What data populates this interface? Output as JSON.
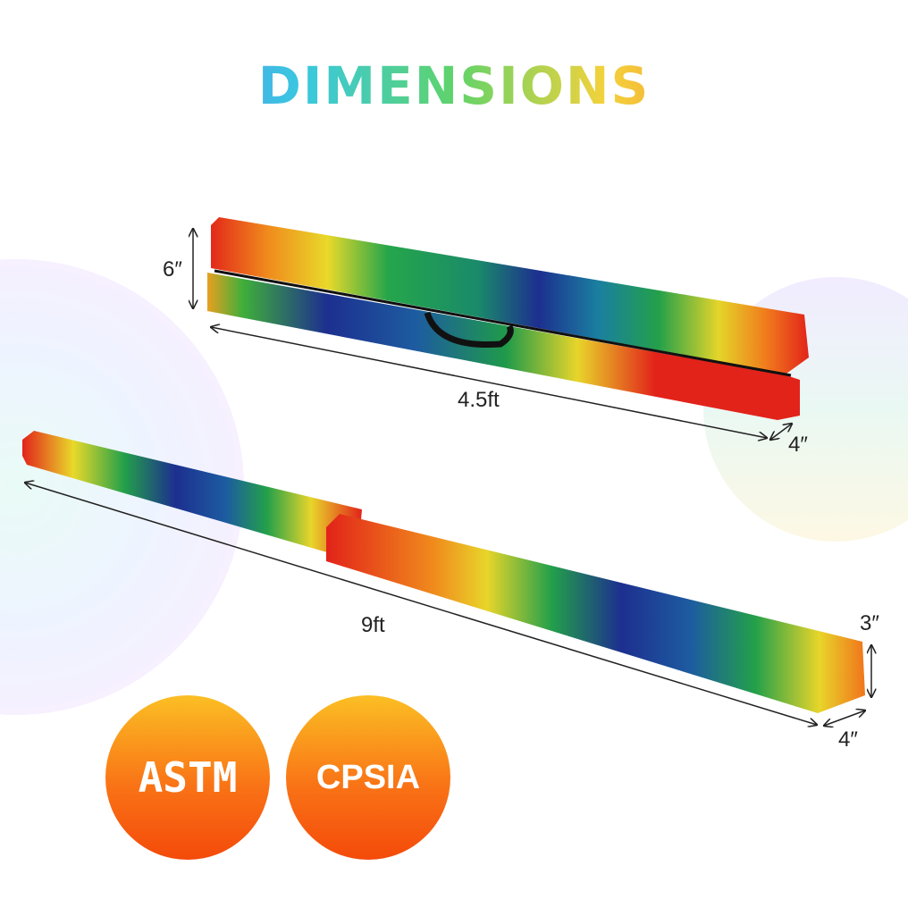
{
  "title": "DIMENSIONS",
  "folded": {
    "height": "6″",
    "length": "4.5ft",
    "width": "4″"
  },
  "unfolded": {
    "length": "9ft",
    "height": "3″",
    "width": "4″"
  },
  "badges": [
    {
      "label": "ASTM"
    },
    {
      "label": "CPSIA"
    }
  ],
  "colors": {
    "badge_top": "#fbbf24",
    "badge_bottom": "#f44a0a"
  }
}
